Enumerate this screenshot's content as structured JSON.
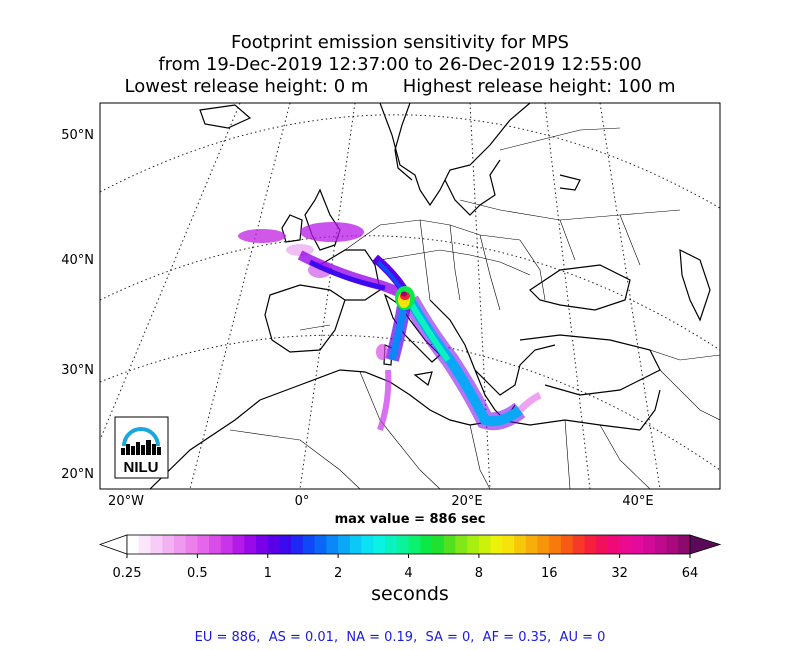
{
  "title": {
    "line1": "Footprint emission sensitivity for MPS",
    "line2": "from 19-Dec-2019 12:37:00 to 26-Dec-2019 12:55:00",
    "line3": "Lowest release height: 0 m      Highest release height: 100 m"
  },
  "logo": {
    "text": "NILU"
  },
  "chart_data": {
    "type": "heatmap",
    "map_region": "Europe / Mediterranean",
    "projection": "conic",
    "graticule": "dotted",
    "lat_labels": [
      "50°N",
      "40°N",
      "30°N",
      "20°N"
    ],
    "lon_labels": [
      "20°W",
      "0°",
      "20°E",
      "40°E"
    ],
    "max_value_label": "max value = 886 sec",
    "colorbar": {
      "ticks": [
        "0.25",
        "0.5",
        "1",
        "2",
        "4",
        "8",
        "16",
        "32",
        "64"
      ],
      "unit_label": "seconds",
      "scale": "log",
      "range": [
        0.25,
        64
      ],
      "colors": [
        "#ffffff",
        "#fbe6fb",
        "#f7cdf7",
        "#f3b3f3",
        "#ef9aef",
        "#eb80eb",
        "#e567e9",
        "#d94ce7",
        "#c933e9",
        "#b41ae9",
        "#9a0ae9",
        "#7a00e9",
        "#5a00e9",
        "#3c0aef",
        "#2028f5",
        "#1048f7",
        "#0a68f7",
        "#0a88f7",
        "#0aa8f7",
        "#0ac8f7",
        "#0ae2f2",
        "#0af2e2",
        "#0af2c0",
        "#0af29a",
        "#0af270",
        "#0ae84a",
        "#20e030",
        "#50e020",
        "#80e818",
        "#a8ee10",
        "#ccf20a",
        "#ecf20a",
        "#f7e20a",
        "#f7c80a",
        "#f7ae0a",
        "#f7940a",
        "#f77a0a",
        "#f75a14",
        "#f73a28",
        "#f7203c",
        "#f2105a",
        "#f00a78",
        "#ec0a90",
        "#e30a9e",
        "#d30a98",
        "#be0a8c",
        "#a80a7e",
        "#8c0a6c"
      ]
    }
  },
  "summary": "EU = 886,  AS = 0.01,  NA = 0.19,  SA = 0,  AF = 0.35,  AU = 0"
}
